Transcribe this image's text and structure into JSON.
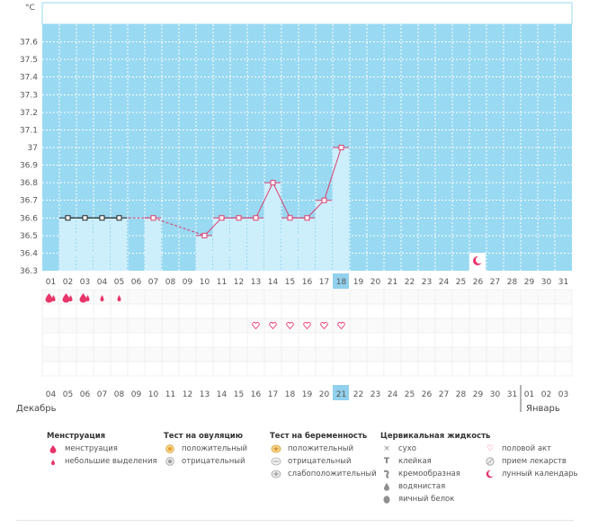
{
  "chart_data": {
    "type": "line",
    "unit_label": "°C",
    "ylim": [
      36.3,
      37.7
    ],
    "yticks": [
      "37.6",
      "37.5",
      "37.4",
      "37.3",
      "37.2",
      "37.1",
      "37",
      "36.9",
      "36.8",
      "36.7",
      "36.6",
      "36.5",
      "36.4",
      "36.3"
    ],
    "cycle_days": [
      "01",
      "02",
      "03",
      "04",
      "05",
      "06",
      "07",
      "08",
      "09",
      "10",
      "11",
      "12",
      "13",
      "14",
      "15",
      "16",
      "17",
      "18",
      "19",
      "20",
      "21",
      "22",
      "23",
      "24",
      "25",
      "26",
      "27",
      "28",
      "29",
      "30",
      "31"
    ],
    "highlight_cycle_day": 18,
    "temperatures": [
      null,
      36.6,
      36.6,
      36.6,
      36.6,
      null,
      36.6,
      null,
      null,
      36.5,
      36.6,
      36.6,
      36.6,
      36.8,
      36.6,
      36.6,
      36.7,
      37.0,
      null,
      null,
      null,
      null,
      null,
      null,
      null,
      null,
      null,
      null,
      null,
      null,
      null
    ],
    "black_markers_through_day": 5,
    "dates": [
      "04",
      "05",
      "06",
      "07",
      "08",
      "09",
      "10",
      "11",
      "12",
      "13",
      "14",
      "15",
      "16",
      "17",
      "18",
      "19",
      "20",
      "21",
      "22",
      "23",
      "24",
      "25",
      "26",
      "27",
      "28",
      "29",
      "30",
      "31",
      "01",
      "02",
      "03"
    ],
    "red_dates": [
      "07",
      "08",
      "14",
      "15",
      "22",
      "28",
      "29"
    ],
    "highlight_date": "21",
    "months": {
      "december": "Декабрь",
      "january": "Январь"
    },
    "menstruation": [
      {
        "day": 1,
        "kind": "menstruation"
      },
      {
        "day": 2,
        "kind": "menstruation"
      },
      {
        "day": 3,
        "kind": "menstruation"
      },
      {
        "day": 4,
        "kind": "spotting"
      },
      {
        "day": 5,
        "kind": "spotting"
      }
    ],
    "intercourse_days": [
      13,
      14,
      15,
      16,
      17,
      18
    ],
    "lunar_day": 26
  },
  "legend": {
    "menstruation": {
      "title": "Менструация",
      "items": [
        "менструация",
        "небольшие выделения"
      ]
    },
    "ovulation": {
      "title": "Тест на овуляцию",
      "items": [
        "положительный",
        "отрицательный"
      ]
    },
    "pregnancy": {
      "title": "Тест на беременность",
      "items": [
        "положительный",
        "отрицательный",
        "слабоположительный"
      ]
    },
    "cervical": {
      "title": "Цервикальная жидкость",
      "items": [
        "сухо",
        "клейкая",
        "кремообразная",
        "водянистая",
        "яичный белок"
      ]
    },
    "other": {
      "items": [
        "половой акт",
        "прием лекарств",
        "лунный календарь"
      ]
    }
  },
  "colors": {
    "sky": "#99d9f2",
    "bar": "#cdeffc",
    "line": "#dd3f6e",
    "accent": "#e8356a",
    "highlight": "#92d1ee"
  }
}
